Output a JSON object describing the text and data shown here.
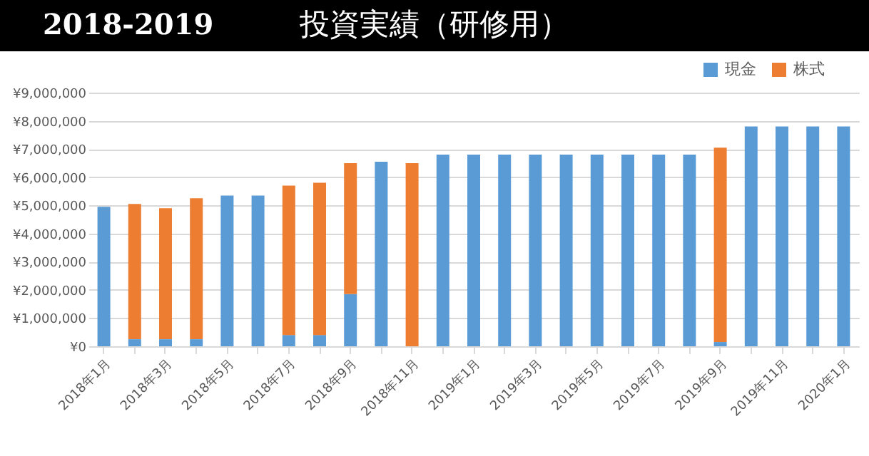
{
  "chart_data": {
    "type": "bar",
    "title": "2018-2019",
    "subtitle": "投資実績（研修用）",
    "categories": [
      "2018年1月",
      null,
      "2018年3月",
      null,
      "2018年5月",
      null,
      "2018年7月",
      null,
      "2018年9月",
      null,
      "2018年11月",
      null,
      "2019年1月",
      null,
      "2019年3月",
      null,
      "2019年5月",
      null,
      "2019年7月",
      null,
      "2019年9月",
      null,
      "2019年11月",
      null,
      "2020年1月"
    ],
    "stacked": true,
    "series": [
      {
        "name": "現金",
        "color": "#5b9bd5",
        "values": [
          4950000,
          250000,
          250000,
          250000,
          5350000,
          5350000,
          400000,
          400000,
          1850000,
          6550000,
          0,
          6800000,
          6800000,
          6800000,
          6800000,
          6800000,
          6800000,
          6800000,
          6800000,
          6800000,
          150000,
          7800000,
          7800000,
          7800000,
          7800000
        ]
      },
      {
        "name": "株式",
        "color": "#ed7d31",
        "values": [
          0,
          4800000,
          4650000,
          5000000,
          0,
          0,
          5300000,
          5400000,
          4650000,
          0,
          6500000,
          0,
          0,
          0,
          0,
          0,
          0,
          0,
          0,
          0,
          6900000,
          0,
          0,
          0,
          0
        ]
      }
    ],
    "ylim": [
      0,
      9000000
    ],
    "yticks": [
      {
        "value": 0,
        "label": "¥0"
      },
      {
        "value": 1000000,
        "label": "¥1,000,000"
      },
      {
        "value": 2000000,
        "label": "¥2,000,000"
      },
      {
        "value": 3000000,
        "label": "¥3,000,000"
      },
      {
        "value": 4000000,
        "label": "¥4,000,000"
      },
      {
        "value": 5000000,
        "label": "¥5,000,000"
      },
      {
        "value": 6000000,
        "label": "¥6,000,000"
      },
      {
        "value": 7000000,
        "label": "¥7,000,000"
      },
      {
        "value": 8000000,
        "label": "¥8,000,000"
      },
      {
        "value": 9000000,
        "label": "¥9,000,000"
      }
    ],
    "grid": "y",
    "legend": "top right"
  }
}
